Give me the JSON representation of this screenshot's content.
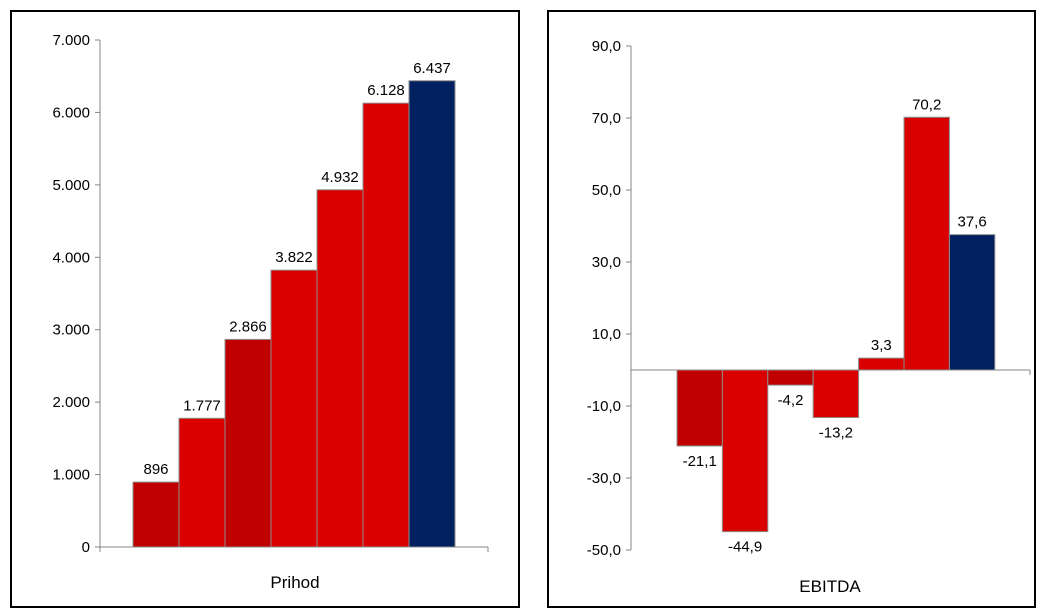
{
  "chart_data": [
    {
      "type": "bar",
      "xlabel": "Prihod",
      "ylabel": "",
      "ylim": [
        0,
        7000
      ],
      "ytick_labels": [
        "0",
        "1.000",
        "2.000",
        "3.000",
        "4.000",
        "5.000",
        "6.000",
        "7.000"
      ],
      "ytick_values": [
        0,
        1000,
        2000,
        3000,
        4000,
        5000,
        6000,
        7000
      ],
      "values": [
        896,
        1777,
        2866,
        3822,
        4932,
        6128,
        6437
      ],
      "data_labels": [
        "896",
        "1.777",
        "2.866",
        "3.822",
        "4.932",
        "6.128",
        "6.437"
      ],
      "colors": [
        "#C00000",
        "#DA0000",
        "#C00000",
        "#DA0000",
        "#DA0000",
        "#DA0000",
        "#002060"
      ],
      "grid": false
    },
    {
      "type": "bar",
      "xlabel": "EBITDA",
      "ylabel": "",
      "ylim": [
        -50,
        90
      ],
      "ytick_labels": [
        "-50,0",
        "-30,0",
        "-10,0",
        "10,0",
        "30,0",
        "50,0",
        "70,0",
        "90,0"
      ],
      "ytick_values": [
        -50,
        -30,
        -10,
        10,
        30,
        50,
        70,
        90
      ],
      "values": [
        -21.1,
        -44.9,
        -4.2,
        -13.2,
        3.3,
        70.2,
        37.6
      ],
      "data_labels": [
        "-21,1",
        "-44,9",
        "-4,2",
        "-13,2",
        "3,3",
        "70,2",
        "37,6"
      ],
      "colors": [
        "#C00000",
        "#DA0000",
        "#C00000",
        "#DA0000",
        "#DA0000",
        "#DA0000",
        "#002060"
      ],
      "grid": false
    }
  ]
}
